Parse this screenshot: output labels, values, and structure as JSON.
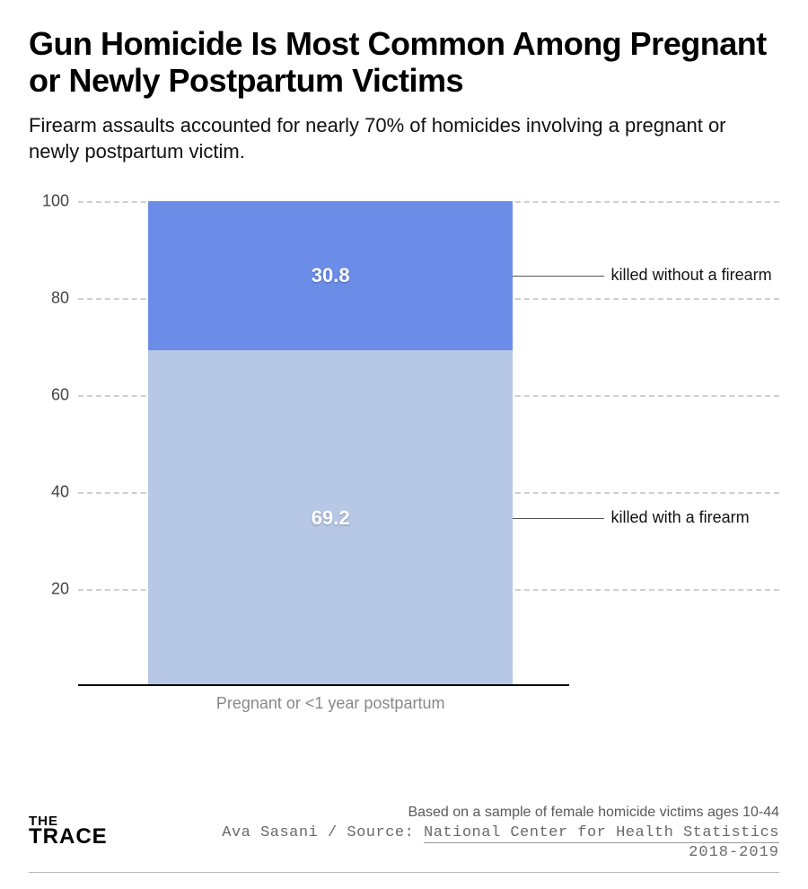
{
  "title": "Gun Homicide Is Most Common Among Pregnant or Newly Postpartum Victims",
  "subtitle": "Firearm assaults accounted for nearly 70% of homicides involving a pregnant or newly postpartum victim.",
  "chart": {
    "type": "stacked-bar",
    "ylim": [
      0,
      100
    ],
    "yticks": [
      20,
      40,
      60,
      80,
      100
    ],
    "background_color": "#ffffff",
    "grid_color": "#cfcfcf",
    "grid_dash": true,
    "baseline_color": "#000000",
    "bar_left_pct": 10,
    "bar_width_pct": 52,
    "baseline_width_pct": 70,
    "category_label": "Pregnant or <1 year postpartum",
    "category_label_color": "#888888",
    "segments": [
      {
        "key": "with_firearm",
        "value": 69.2,
        "color": "#b7c7e6",
        "value_label": "69.2",
        "annotation": "killed with a firearm"
      },
      {
        "key": "without_firearm",
        "value": 30.8,
        "color": "#6b8de8",
        "value_label": "30.8",
        "annotation": "killed without a firearm"
      }
    ],
    "annotation_color": "#111111",
    "annotation_line_color": "#555555",
    "value_label_fontsize": 22,
    "value_label_color": "#ffffff",
    "axis_label_fontsize": 18,
    "axis_label_color": "#444444"
  },
  "footer": {
    "note": "Based on a sample of female homicide victims ages 10-44",
    "author": "Ava Sasani",
    "source_label": "Source:",
    "source_name": "National Center for Health Statistics",
    "years": "2018-2019",
    "logo_line1": "THE",
    "logo_line2": "TRACE"
  }
}
